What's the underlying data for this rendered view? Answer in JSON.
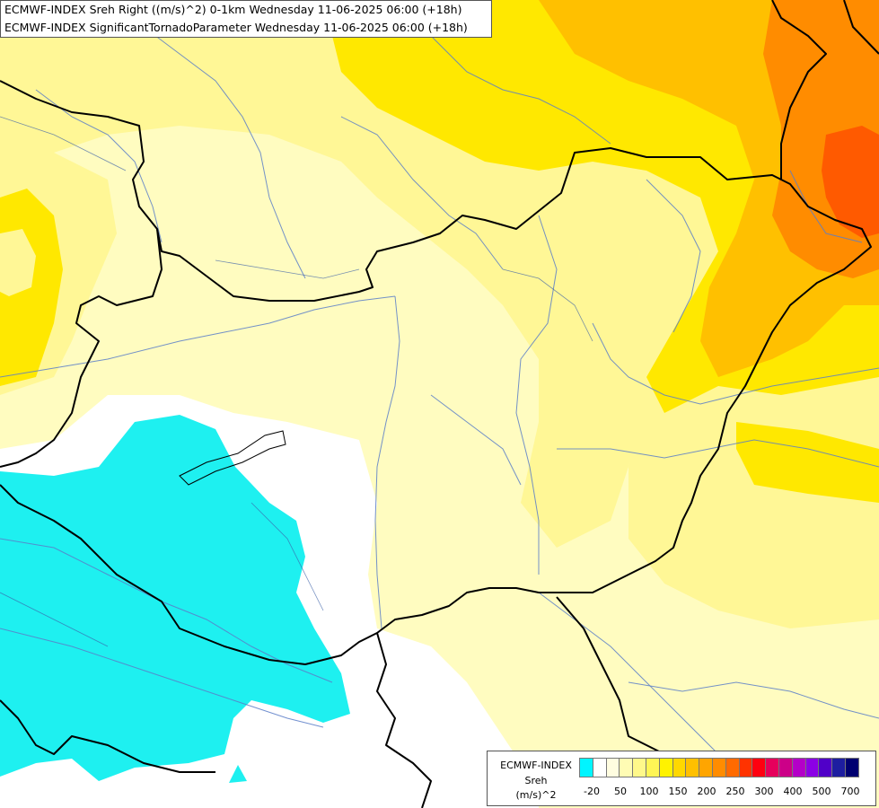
{
  "header": {
    "line1": "ECMWF-INDEX Sreh Right ((m/s)^2) 0-1km Wednesday 11-06-2025 06:00 (+18h)",
    "line2": "ECMWF-INDEX SignificantTornadoParameter Wednesday 11-06-2025 06:00 (+18h)"
  },
  "legend": {
    "model": "ECMWF-INDEX",
    "parameter": "Sreh",
    "unit": "(m/s)^2",
    "colors": [
      "#00f5ff",
      "#ffffff",
      "#fffde0",
      "#fffcb4",
      "#fff88a",
      "#fff555",
      "#fff200",
      "#ffd800",
      "#ffc000",
      "#ffa500",
      "#ff8c00",
      "#ff6a00",
      "#ff3300",
      "#ff0010",
      "#e6005c",
      "#cc0088",
      "#b400c8",
      "#8c00e6",
      "#5000c8",
      "#1e1ea0",
      "#000070"
    ],
    "ticks": [
      "-20",
      "50",
      "100",
      "150",
      "200",
      "250",
      "300",
      "400",
      "500",
      "700"
    ]
  },
  "colors": {
    "shear_negative": "#1ef0f0",
    "low": "#fffcc0",
    "light_yellow": "#fff796",
    "yellow": "#ffe800",
    "gold": "#ffc000",
    "orange": "#ff8c00",
    "deep_orange": "#ff5a00",
    "border": "#000000",
    "river": "#5a7ec8"
  }
}
